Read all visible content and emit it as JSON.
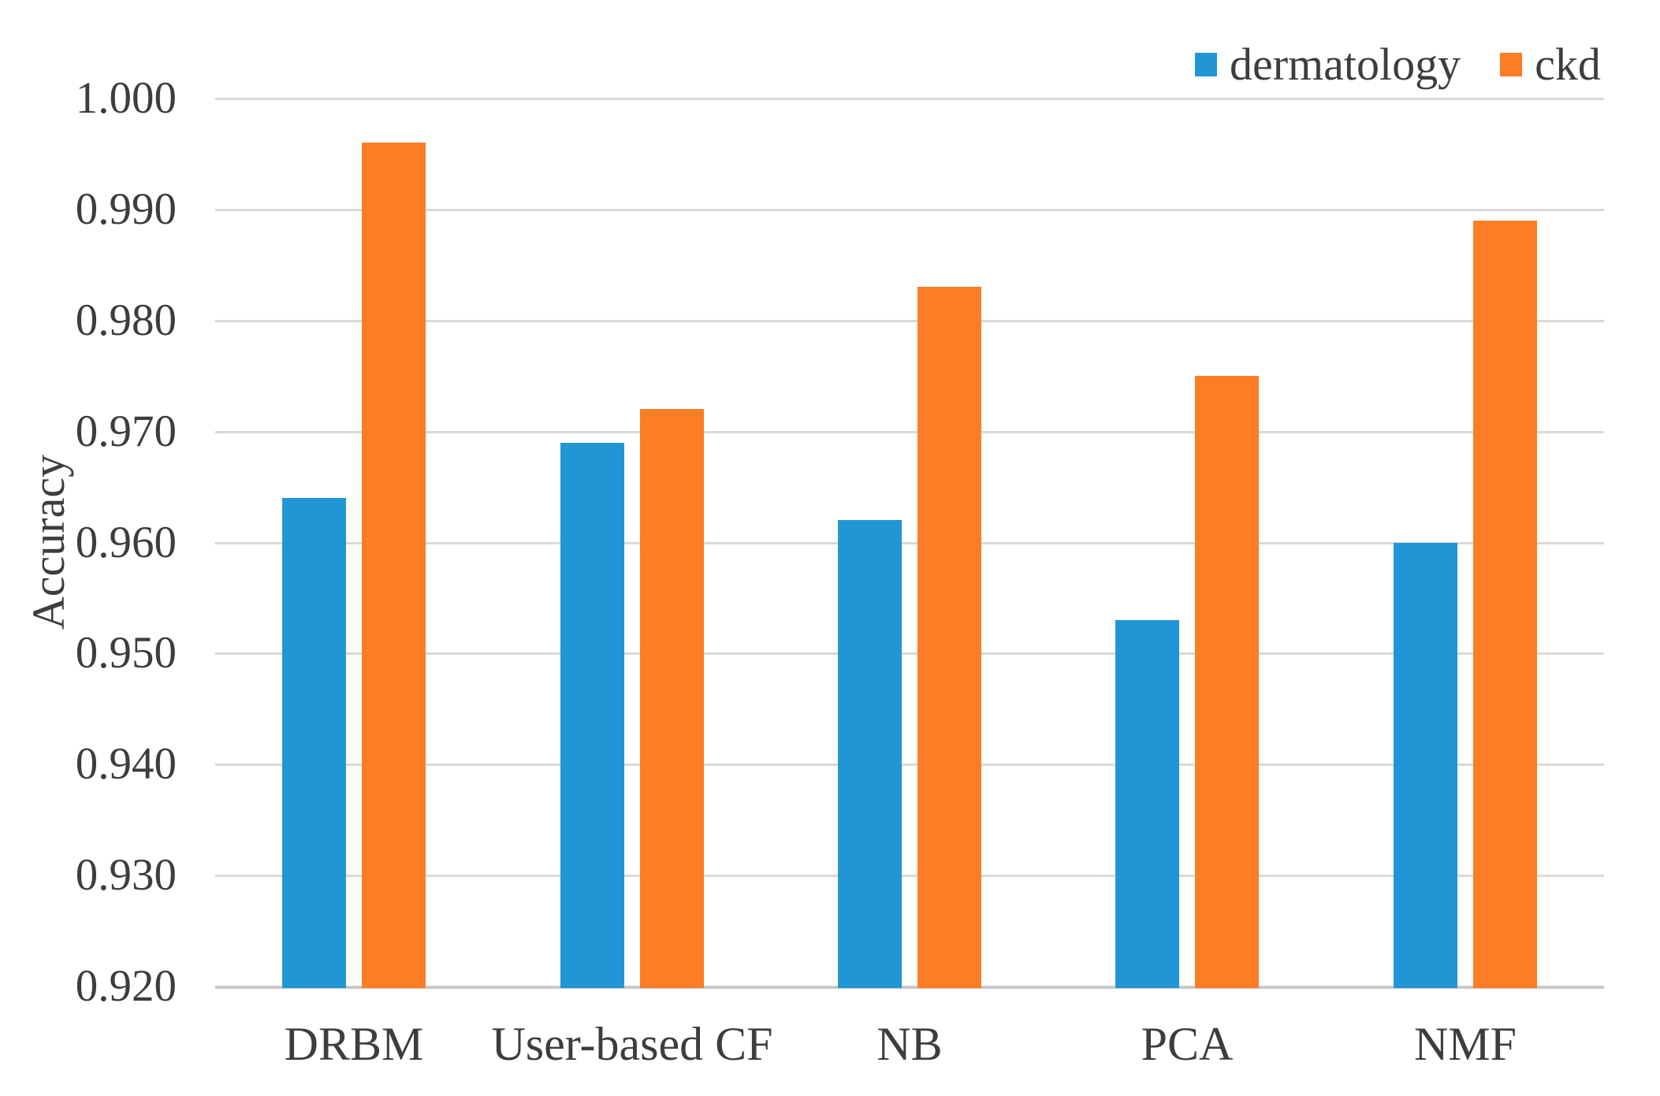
{
  "chart_data": {
    "type": "bar",
    "title": "",
    "categories": [
      "DRBM",
      "User-based CF",
      "NB",
      "PCA",
      "NMF"
    ],
    "series": [
      {
        "name": "dermatology",
        "color": "#2196d5",
        "values": [
          0.964,
          0.969,
          0.962,
          0.953,
          0.96
        ]
      },
      {
        "name": "ckd",
        "color": "#fb7d26",
        "values": [
          0.996,
          0.972,
          0.983,
          0.975,
          0.989
        ]
      }
    ],
    "xlabel": "",
    "ylabel": "Accuracy",
    "ylim": [
      0.92,
      1.0
    ],
    "ytick_step": 0.01,
    "ytick_labels": [
      "1.000",
      "0.990",
      "0.980",
      "0.970",
      "0.960",
      "0.950",
      "0.940",
      "0.930",
      "0.920"
    ],
    "legend_position": "top-right",
    "grid": "horizontal",
    "gridline_color": "#d9d9d9",
    "axis_line_color": "#c9c9c9",
    "text_color": "#3d3d3d",
    "background_color": "#ffffff"
  }
}
